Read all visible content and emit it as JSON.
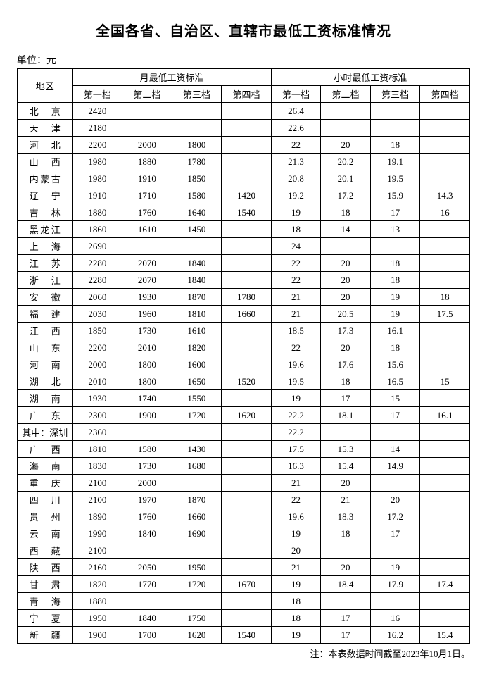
{
  "title": "全国各省、自治区、直辖市最低工资标准情况",
  "unit_label": "单位：元",
  "note": "注：本表数据时间截至2023年10月1日。",
  "headers": {
    "region": "地区",
    "monthly": "月最低工资标准",
    "hourly": "小时最低工资标准",
    "tier1": "第一档",
    "tier2": "第二档",
    "tier3": "第三档",
    "tier4": "第四档"
  },
  "regions": [
    {
      "name": "北京",
      "m1": "2420",
      "m2": "",
      "m3": "",
      "m4": "",
      "h1": "26.4",
      "h2": "",
      "h3": "",
      "h4": ""
    },
    {
      "name": "天　津",
      "m1": "2180",
      "m2": "",
      "m3": "",
      "m4": "",
      "h1": "22.6",
      "h2": "",
      "h3": "",
      "h4": ""
    },
    {
      "name": "河北",
      "m1": "2200",
      "m2": "2000",
      "m3": "1800",
      "m4": "",
      "h1": "22",
      "h2": "20",
      "h3": "18",
      "h4": ""
    },
    {
      "name": "山　西",
      "m1": "1980",
      "m2": "1880",
      "m3": "1780",
      "m4": "",
      "h1": "21.3",
      "h2": "20.2",
      "h3": "19.1",
      "h4": ""
    },
    {
      "name": "内蒙古",
      "m1": "1980",
      "m2": "1910",
      "m3": "1850",
      "m4": "",
      "h1": "20.8",
      "h2": "20.1",
      "h3": "19.5",
      "h4": ""
    },
    {
      "name": "辽宁",
      "m1": "1910",
      "m2": "1710",
      "m3": "1580",
      "m4": "1420",
      "h1": "19.2",
      "h2": "17.2",
      "h3": "15.9",
      "h4": "14.3"
    },
    {
      "name": "吉　林",
      "m1": "1880",
      "m2": "1760",
      "m3": "1640",
      "m4": "1540",
      "h1": "19",
      "h2": "18",
      "h3": "17",
      "h4": "16"
    },
    {
      "name": "黑龙江",
      "m1": "1860",
      "m2": "1610",
      "m3": "1450",
      "m4": "",
      "h1": "18",
      "h2": "14",
      "h3": "13",
      "h4": ""
    },
    {
      "name": "上　海",
      "m1": "2690",
      "m2": "",
      "m3": "",
      "m4": "",
      "h1": "24",
      "h2": "",
      "h3": "",
      "h4": ""
    },
    {
      "name": "江　苏",
      "m1": "2280",
      "m2": "2070",
      "m3": "1840",
      "m4": "",
      "h1": "22",
      "h2": "20",
      "h3": "18",
      "h4": ""
    },
    {
      "name": "浙　江",
      "m1": "2280",
      "m2": "2070",
      "m3": "1840",
      "m4": "",
      "h1": "22",
      "h2": "20",
      "h3": "18",
      "h4": ""
    },
    {
      "name": "安　徽",
      "m1": "2060",
      "m2": "1930",
      "m3": "1870",
      "m4": "1780",
      "h1": "21",
      "h2": "20",
      "h3": "19",
      "h4": "18"
    },
    {
      "name": "福　建",
      "m1": "2030",
      "m2": "1960",
      "m3": "1810",
      "m4": "1660",
      "h1": "21",
      "h2": "20.5",
      "h3": "19",
      "h4": "17.5"
    },
    {
      "name": "江　西",
      "m1": "1850",
      "m2": "1730",
      "m3": "1610",
      "m4": "",
      "h1": "18.5",
      "h2": "17.3",
      "h3": "16.1",
      "h4": ""
    },
    {
      "name": "山　东",
      "m1": "2200",
      "m2": "2010",
      "m3": "1820",
      "m4": "",
      "h1": "22",
      "h2": "20",
      "h3": "18",
      "h4": ""
    },
    {
      "name": "河　南",
      "m1": "2000",
      "m2": "1800",
      "m3": "1600",
      "m4": "",
      "h1": "19.6",
      "h2": "17.6",
      "h3": "15.6",
      "h4": ""
    },
    {
      "name": "湖　北",
      "m1": "2010",
      "m2": "1800",
      "m3": "1650",
      "m4": "1520",
      "h1": "19.5",
      "h2": "18",
      "h3": "16.5",
      "h4": "15"
    },
    {
      "name": "湖南",
      "m1": "1930",
      "m2": "1740",
      "m3": "1550",
      "m4": "",
      "h1": "19",
      "h2": "17",
      "h3": "15",
      "h4": ""
    },
    {
      "name": "广　东",
      "m1": "2300",
      "m2": "1900",
      "m3": "1720",
      "m4": "1620",
      "h1": "22.2",
      "h2": "18.1",
      "h3": "17",
      "h4": "16.1"
    },
    {
      "name": "其中：深圳",
      "m1": "2360",
      "m2": "",
      "m3": "",
      "m4": "",
      "h1": "22.2",
      "h2": "",
      "h3": "",
      "h4": "",
      "nojustify": true
    },
    {
      "name": "广　西",
      "m1": "1810",
      "m2": "1580",
      "m3": "1430",
      "m4": "",
      "h1": "17.5",
      "h2": "15.3",
      "h3": "14",
      "h4": ""
    },
    {
      "name": "海　南",
      "m1": "1830",
      "m2": "1730",
      "m3": "1680",
      "m4": "",
      "h1": "16.3",
      "h2": "15.4",
      "h3": "14.9",
      "h4": ""
    },
    {
      "name": "重　庆",
      "m1": "2100",
      "m2": "2000",
      "m3": "",
      "m4": "",
      "h1": "21",
      "h2": "20",
      "h3": "",
      "h4": ""
    },
    {
      "name": "四　川",
      "m1": "2100",
      "m2": "1970",
      "m3": "1870",
      "m4": "",
      "h1": "22",
      "h2": "21",
      "h3": "20",
      "h4": ""
    },
    {
      "name": "贵州",
      "m1": "1890",
      "m2": "1760",
      "m3": "1660",
      "m4": "",
      "h1": "19.6",
      "h2": "18.3",
      "h3": "17.2",
      "h4": ""
    },
    {
      "name": "云　南",
      "m1": "1990",
      "m2": "1840",
      "m3": "1690",
      "m4": "",
      "h1": "19",
      "h2": "18",
      "h3": "17",
      "h4": ""
    },
    {
      "name": "西　藏",
      "m1": "2100",
      "m2": "",
      "m3": "",
      "m4": "",
      "h1": "20",
      "h2": "",
      "h3": "",
      "h4": ""
    },
    {
      "name": "陕　西",
      "m1": "2160",
      "m2": "2050",
      "m3": "1950",
      "m4": "",
      "h1": "21",
      "h2": "20",
      "h3": "19",
      "h4": ""
    },
    {
      "name": "甘　肃",
      "m1": "1820",
      "m2": "1770",
      "m3": "1720",
      "m4": "1670",
      "h1": "19",
      "h2": "18.4",
      "h3": "17.9",
      "h4": "17.4"
    },
    {
      "name": "青　海",
      "m1": "1880",
      "m2": "",
      "m3": "",
      "m4": "",
      "h1": "18",
      "h2": "",
      "h3": "",
      "h4": ""
    },
    {
      "name": "宁　夏",
      "m1": "1950",
      "m2": "1840",
      "m3": "1750",
      "m4": "",
      "h1": "18",
      "h2": "17",
      "h3": "16",
      "h4": ""
    },
    {
      "name": "新　疆",
      "m1": "1900",
      "m2": "1700",
      "m3": "1620",
      "m4": "1540",
      "h1": "19",
      "h2": "17",
      "h3": "16.2",
      "h4": "15.4"
    }
  ]
}
